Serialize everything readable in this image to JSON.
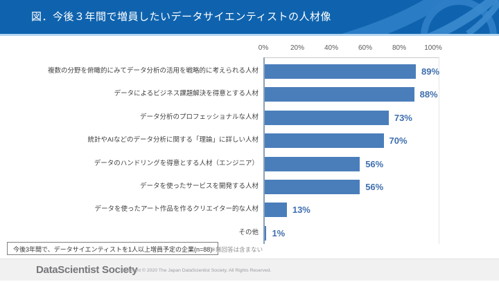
{
  "header": {
    "title": "図．今後３年間で増員したいデータサイエンティストの人材像"
  },
  "chart_data": {
    "type": "bar",
    "orientation": "horizontal",
    "title": "図．今後３年間で増員したいデータサイエンティストの人材像",
    "categories": [
      "複数の分野を俯瞰的にみてデータ分析の活用を戦略的に考えられる人材",
      "データによるビジネス課題解決を得意とする人材",
      "データ分析のプロフェッショナルな人材",
      "統計やAIなどのデータ分析に関する「理論」に詳しい人材",
      "データのハンドリングを得意とする人材（エンジニア）",
      "データを使ったサービスを開発する人材",
      "データを使ったアート作品を作るクリエイター的な人材",
      "その他"
    ],
    "values": [
      89,
      88,
      73,
      70,
      56,
      56,
      13,
      1
    ],
    "value_labels": [
      "89%",
      "88%",
      "73%",
      "70%",
      "56%",
      "56%",
      "13%",
      "1%"
    ],
    "x_ticks": [
      "0%",
      "20%",
      "40%",
      "60%",
      "80%",
      "100%"
    ],
    "xlim": [
      0,
      100
    ],
    "grid": false,
    "legend": "none",
    "bar_color": "#4a7ebb",
    "value_label_color": "#3f6fad",
    "axis_tick_color": "#595959"
  },
  "annotation": {
    "box_text": "今後3年間で、データサイエンティストを1人以上増員予定の企業(n=88)",
    "note_text": "※無回答は含まない"
  },
  "footer": {
    "logo_text": "DataScientist Society",
    "copyright_text": "Copyright © 2020 The Japan DataScientist Society. All Rights Reserved."
  },
  "colors": {
    "header_bg": "#0f63ae",
    "header_accent_line": "#b5d6ef",
    "header_swirl": "#2e7ec6",
    "footer_bg": "#f1f1f2"
  }
}
